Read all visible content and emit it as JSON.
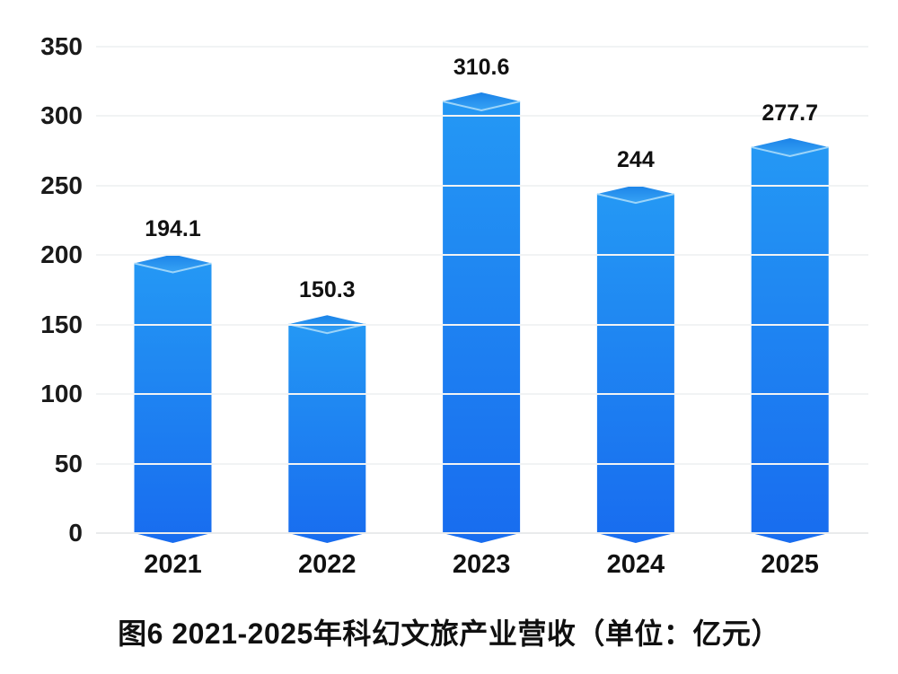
{
  "title": "图6 2021-2025年科幻文旅产业营收（单位：亿元）",
  "colors": {
    "bar_body_top": "#2498f4",
    "bar_body_bottom": "#186cef",
    "bar_lid_top": "#1b83e8",
    "bar_lid_bottom": "#37a3f5",
    "bar_lid_edge_highlight": "#a9daf9",
    "gridline": "#f1f3f4",
    "baseline": "#e9ebec",
    "text": "#111111",
    "background": "#ffffff"
  },
  "chart_data": {
    "type": "bar",
    "title": "图6 2021-2025年科幻文旅产业营收（单位：亿元）",
    "categories": [
      "2021",
      "2022",
      "2023",
      "2024",
      "2025"
    ],
    "values": [
      194.1,
      150.3,
      310.6,
      244,
      277.7
    ],
    "value_labels": [
      "194.1",
      "150.3",
      "310.6",
      "244",
      "277.7"
    ],
    "series_name": "科幻文旅产业营收",
    "unit": "亿元",
    "xlabel": "",
    "ylabel": "",
    "ylim": [
      0,
      350
    ],
    "ytick_interval": 50,
    "yticks": [
      350,
      300,
      250,
      200,
      150,
      100,
      50,
      0
    ],
    "grid": true,
    "legend_position": "none",
    "bar_style": "3d-prism-gradient-blue"
  }
}
